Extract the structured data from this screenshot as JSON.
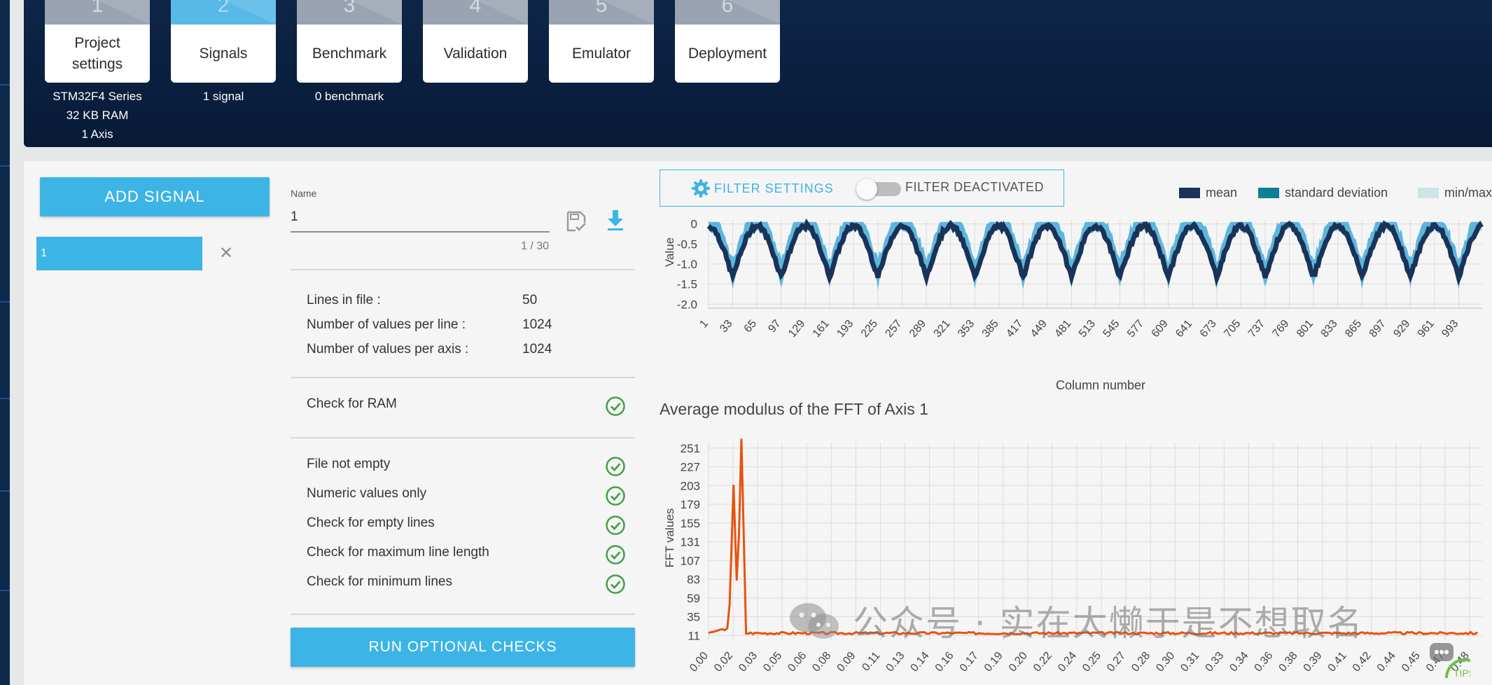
{
  "steps": [
    {
      "num": "1",
      "label": "Project settings",
      "info": [
        "STM32F4 Series",
        "32 KB RAM",
        "1 Axis"
      ],
      "active": false
    },
    {
      "num": "2",
      "label": "Signals",
      "info": [
        "1 signal"
      ],
      "active": true
    },
    {
      "num": "3",
      "label": "Benchmark",
      "info": [
        "0 benchmark"
      ],
      "active": false
    },
    {
      "num": "4",
      "label": "Validation",
      "info": [],
      "active": false
    },
    {
      "num": "5",
      "label": "Emulator",
      "info": [],
      "active": false
    },
    {
      "num": "6",
      "label": "Deployment",
      "info": [],
      "active": false
    }
  ],
  "sidebar": {
    "add_signal_label": "ADD SIGNAL",
    "signals": [
      {
        "name": "1",
        "selected": true
      }
    ]
  },
  "signal_form": {
    "name_label": "Name",
    "name_value": "1",
    "counter": "1 / 30"
  },
  "file_info": {
    "lines_label": "Lines in file :",
    "lines_value": "50",
    "values_line_label": "Number of values per line :",
    "values_line_value": "1024",
    "values_axis_label": "Number of values per axis :",
    "values_axis_value": "1024"
  },
  "checks": [
    {
      "label": "Check for RAM",
      "status": "pass"
    },
    {
      "label": "File not empty",
      "status": "pass"
    },
    {
      "label": "Numeric values only",
      "status": "pass"
    },
    {
      "label": "Check for empty lines",
      "status": "pass"
    },
    {
      "label": "Check for maximum line length",
      "status": "pass"
    },
    {
      "label": "Check for minimum lines",
      "status": "pass"
    }
  ],
  "run_checks_label": "RUN OPTIONAL CHECKS",
  "filter": {
    "settings_label": "FILTER SETTINGS",
    "state_label": "FILTER DEACTIVATED",
    "enabled": false
  },
  "colors": {
    "accent": "#3db4e6",
    "header_bg": "#0a1f3e",
    "mean": "#1a3358",
    "std": "#0e7f96",
    "minmax": "#cfe4e6",
    "signal_band": "#5cb6dc",
    "fft_line": "#e8520e",
    "check_green": "#43a047"
  },
  "chart_data": [
    {
      "type": "area",
      "title": "",
      "xlabel": "Column number",
      "ylabel": "Value",
      "legend": [
        {
          "name": "mean",
          "color": "#1a3358"
        },
        {
          "name": "standard deviation",
          "color": "#0e7f96"
        },
        {
          "name": "min/max",
          "color": "#cfe4e6"
        }
      ],
      "legend_position": "top-right",
      "x_ticks": [
        "1",
        "33",
        "65",
        "97",
        "129",
        "161",
        "193",
        "225",
        "257",
        "289",
        "321",
        "353",
        "385",
        "417",
        "449",
        "481",
        "513",
        "545",
        "577",
        "609",
        "641",
        "673",
        "705",
        "737",
        "769",
        "801",
        "833",
        "865",
        "897",
        "929",
        "961",
        "993"
      ],
      "y_ticks": [
        "0",
        "-0.5",
        "-1.0",
        "-1.5",
        "-2.0"
      ],
      "xlim": [
        1,
        1024
      ],
      "ylim": [
        -2.1,
        0.1
      ],
      "grid": true,
      "mean_profile": {
        "period_columns": 64,
        "max": -0.05,
        "min": -1.3
      },
      "band_profile": {
        "max": 0.05,
        "min": -1.6
      }
    },
    {
      "type": "line",
      "title": "Average modulus of the FFT of Axis 1",
      "xlabel": "",
      "ylabel": "FFT values",
      "x_ticks": [
        "0.00",
        "0.02",
        "0.03",
        "0.05",
        "0.06",
        "0.08",
        "0.09",
        "0.11",
        "0.13",
        "0.14",
        "0.16",
        "0.17",
        "0.19",
        "0.20",
        "0.22",
        "0.24",
        "0.25",
        "0.27",
        "0.28",
        "0.30",
        "0.31",
        "0.33",
        "0.34",
        "0.36",
        "0.38",
        "0.39",
        "0.41",
        "0.42",
        "0.44",
        "0.45",
        "0.47",
        "0.48"
      ],
      "y_ticks": [
        "251",
        "227",
        "203",
        "179",
        "155",
        "131",
        "107",
        "83",
        "59",
        "35",
        "11"
      ],
      "ylim": [
        5,
        258
      ],
      "grid": true,
      "series": [
        {
          "color": "#e8520e",
          "peaks": [
            {
              "x": 0.016,
              "y": 204
            },
            {
              "x": 0.021,
              "y": 263
            }
          ],
          "baseline": 14
        }
      ]
    }
  ],
  "watermark": "公众号 · 实在太懒于是不想取名",
  "tips_label": "TIPS"
}
